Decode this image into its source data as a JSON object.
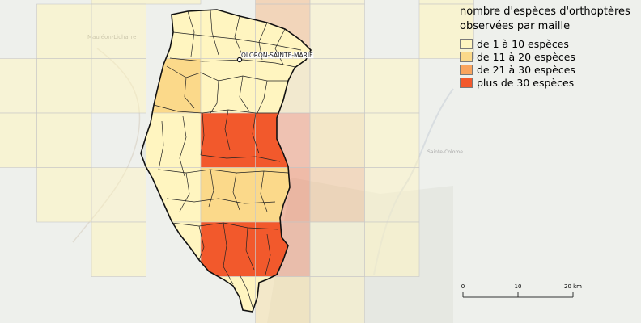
{
  "legend": {
    "title_line1": "nombre d'espèces d'orthoptères",
    "title_line2": "observées par maille",
    "classes": [
      {
        "label": "de 1 à 10 espèces",
        "color": "#fff5c0"
      },
      {
        "label": "de 11 à 20 espèces",
        "color": "#fbd98a"
      },
      {
        "label": "de 21 à 30 espèces",
        "color": "#f9a45e"
      },
      {
        "label": "plus de 30 espèces",
        "color": "#f2592c"
      }
    ]
  },
  "city": {
    "label": "OLORON-SAINTE-MARIE"
  },
  "basemap": {
    "town1": "Mauléon-Licharre",
    "town2": "Sainte-Colome"
  },
  "scale": {
    "ticks": [
      "0",
      "10",
      "20 km"
    ]
  },
  "colors": {
    "basemap": "#eef0ec",
    "boundary": "#111111",
    "grid_line": "#c9c9c9"
  }
}
